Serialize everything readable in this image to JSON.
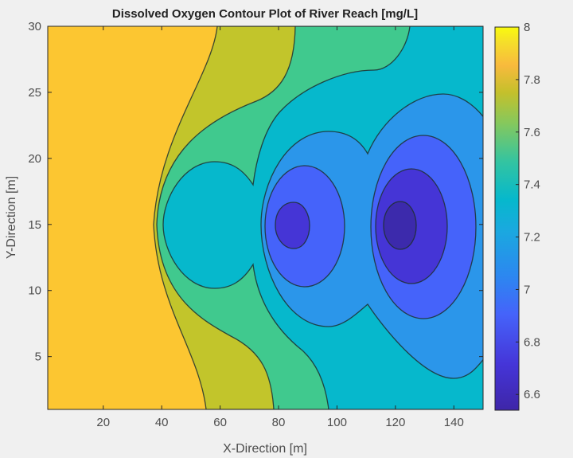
{
  "chart_data": {
    "type": "contour",
    "title": "Dissolved Oxygen Contour Plot of River Reach [mg/L]",
    "xlabel": "X-Direction [m]",
    "ylabel": "Y-Direction [m]",
    "xlim": [
      1,
      150
    ],
    "ylim": [
      1,
      30
    ],
    "xticks": [
      20,
      40,
      60,
      80,
      100,
      120,
      140
    ],
    "yticks": [
      5,
      10,
      15,
      20,
      25,
      30
    ],
    "colorbar": {
      "limits": [
        6.54,
        8
      ],
      "ticks": [
        "6.6",
        "6.8",
        "7",
        "7.2",
        "7.4",
        "7.6",
        "7.8",
        "8"
      ],
      "colormap": "parula"
    },
    "levels": [
      6.6,
      6.8,
      7.0,
      7.2,
      7.4,
      7.6,
      7.8
    ],
    "minima": [
      {
        "x": 85,
        "y": 15,
        "approx_value": 6.65
      },
      {
        "x": 122,
        "y": 15,
        "approx_value": 6.55
      }
    ],
    "band_colors": {
      "above_7.8": "#fcc631",
      "7.6_7.8": "#c2c52b",
      "7.4_7.6": "#40c98e",
      "7.2_7.4": "#06b8cc",
      "7.0_7.2": "#2b96ea",
      "6.8_7.0": "#4563fa",
      "6.6_6.8": "#4535d6",
      "below_6.6": "#3c2aac"
    }
  }
}
